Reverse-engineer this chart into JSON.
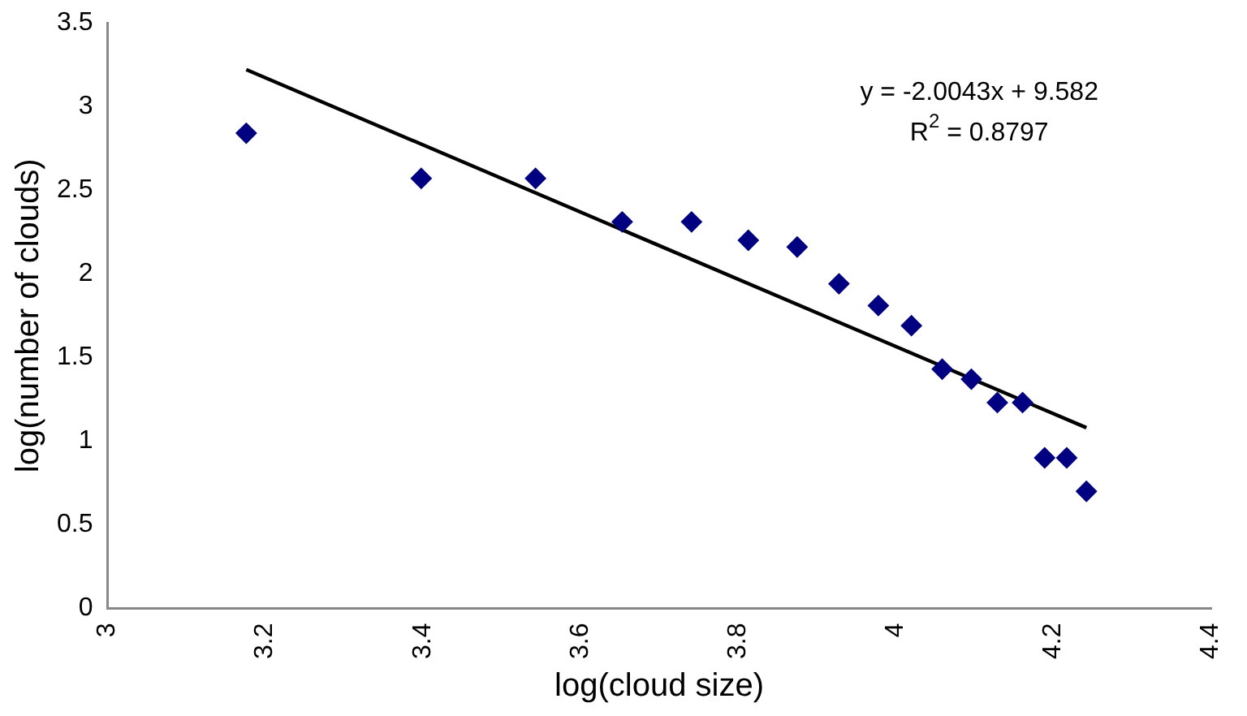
{
  "chart_data": {
    "type": "scatter",
    "xlabel": "log(cloud size)",
    "ylabel": "log(number of clouds)",
    "xlim": [
      3,
      4.4
    ],
    "xticks": [
      3,
      3.2,
      3.4,
      3.6,
      3.8,
      4,
      4.2,
      4.4
    ],
    "ylim": [
      0,
      3.5
    ],
    "yticks": [
      0,
      0.5,
      1,
      1.5,
      2,
      2.5,
      3,
      3.5
    ],
    "grid": false,
    "legend": false,
    "marker": "diamond",
    "annotations": [
      "y = -2.0043x + 9.582",
      "R$^{2}$ = 0.8797"
    ],
    "series": [
      {
        "color": "#000080",
        "x": [
          3.176,
          3.398,
          3.543,
          3.653,
          3.741,
          3.813,
          3.875,
          3.928,
          3.978,
          4.02,
          4.059,
          4.096,
          4.129,
          4.161,
          4.189,
          4.217,
          4.242
        ],
        "values": [
          2.84,
          2.57,
          2.57,
          2.31,
          2.31,
          2.2,
          2.16,
          1.94,
          1.81,
          1.69,
          1.43,
          1.37,
          1.23,
          1.23,
          0.9,
          0.9,
          0.7
        ]
      },
      {
        "type": "line",
        "color": "#000000",
        "x": [
          3.176,
          4.242
        ],
        "values": [
          3.22,
          1.08
        ],
        "line_style": "solid",
        "marker": "none"
      }
    ]
  }
}
